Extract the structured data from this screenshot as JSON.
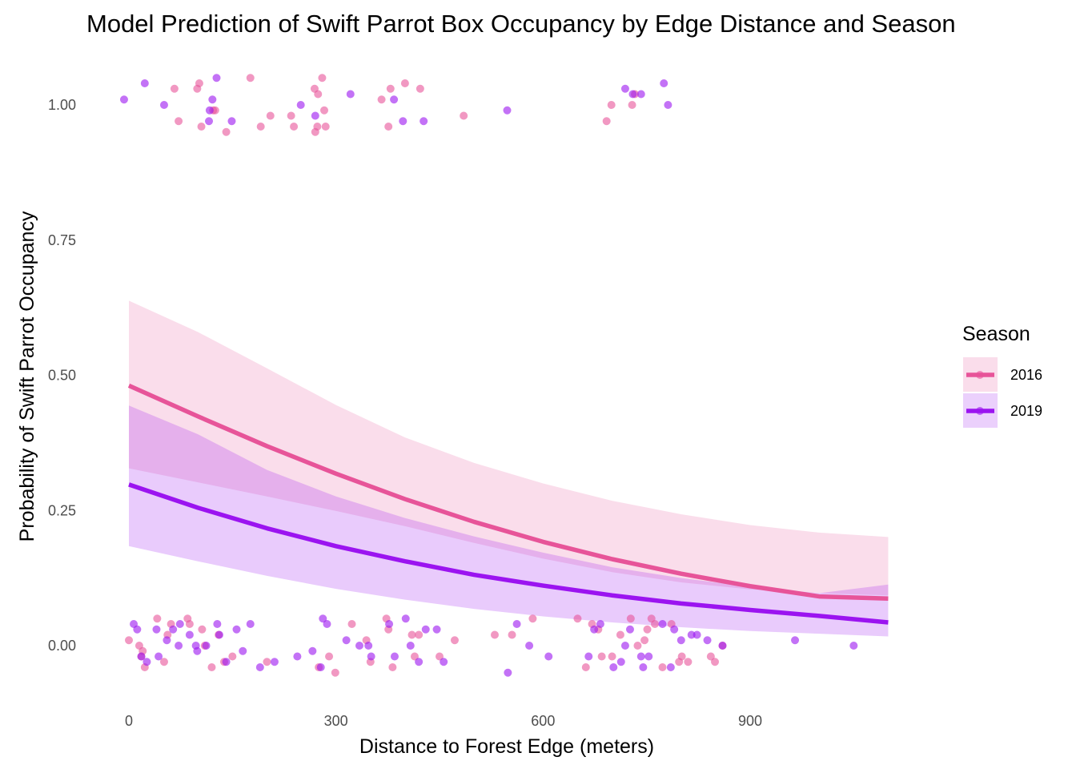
{
  "chart_data": {
    "type": "line",
    "title": "Model Prediction of Swift Parrot Box Occupancy by Edge Distance and Season",
    "xlabel": "Distance to Forest Edge (meters)",
    "ylabel": "Probability of Swift Parrot Occupancy",
    "xlim": [
      -20,
      1110
    ],
    "ylim": [
      -0.1,
      1.08
    ],
    "x_ticks": [
      0,
      300,
      600,
      900
    ],
    "x_tick_labels": [
      "0",
      "300",
      "600",
      "900"
    ],
    "y_ticks": [
      0.0,
      0.25,
      0.5,
      0.75,
      1.0
    ],
    "y_tick_labels": [
      "0.00",
      "0.25",
      "0.50",
      "0.75",
      "1.00"
    ],
    "grid": false,
    "legend": {
      "title": "Season",
      "position": "right"
    },
    "x": [
      0,
      100,
      200,
      300,
      400,
      500,
      600,
      700,
      800,
      900,
      1000,
      1100
    ],
    "series": [
      {
        "name": "2016",
        "color": "#e75499",
        "fit": [
          0.481,
          0.424,
          0.369,
          0.318,
          0.271,
          0.229,
          0.192,
          0.16,
          0.133,
          0.11,
          0.091,
          0.087
        ],
        "lower": [
          0.328,
          0.302,
          0.276,
          0.249,
          0.221,
          0.19,
          0.161,
          0.136,
          0.117,
          0.104,
          0.097,
          0.093
        ],
        "upper": [
          0.638,
          0.58,
          0.513,
          0.445,
          0.385,
          0.338,
          0.3,
          0.268,
          0.243,
          0.223,
          0.209,
          0.201
        ],
        "jittered_observations": {
          "occupied_1": [
            [
              66,
              1.03
            ],
            [
              72,
              0.97
            ],
            [
              99,
              1.03
            ],
            [
              102,
              1.04
            ],
            [
              105,
              0.96
            ],
            [
              122,
              0.99
            ],
            [
              125,
              0.99
            ],
            [
              141,
              0.95
            ],
            [
              176,
              1.05
            ],
            [
              191,
              0.96
            ],
            [
              205,
              0.98
            ],
            [
              235,
              0.98
            ],
            [
              239,
              0.96
            ],
            [
              269,
              1.03
            ],
            [
              270,
              0.95
            ],
            [
              273,
              0.96
            ],
            [
              274,
              1.02
            ],
            [
              280,
              1.05
            ],
            [
              283,
              0.99
            ],
            [
              285,
              0.96
            ],
            [
              366,
              1.01
            ],
            [
              376,
              0.96
            ],
            [
              379,
              1.03
            ],
            [
              400,
              1.04
            ],
            [
              422,
              1.03
            ],
            [
              485,
              0.98
            ],
            [
              692,
              0.97
            ],
            [
              699,
              1.0
            ],
            [
              729,
              1.0
            ],
            [
              733,
              1.02
            ]
          ],
          "occupied_0": [
            [
              0,
              0.01
            ],
            [
              15,
              0.0
            ],
            [
              18,
              -0.02
            ],
            [
              20,
              -0.01
            ],
            [
              23,
              -0.04
            ],
            [
              41,
              0.05
            ],
            [
              51,
              -0.03
            ],
            [
              56,
              0.02
            ],
            [
              61,
              0.04
            ],
            [
              85,
              0.05
            ],
            [
              88,
              0.04
            ],
            [
              106,
              0.03
            ],
            [
              110,
              0.0
            ],
            [
              120,
              -0.04
            ],
            [
              130,
              0.02
            ],
            [
              138,
              -0.03
            ],
            [
              150,
              -0.02
            ],
            [
              200,
              -0.03
            ],
            [
              275,
              -0.04
            ],
            [
              290,
              -0.02
            ],
            [
              299,
              -0.05
            ],
            [
              323,
              0.04
            ],
            [
              344,
              0.01
            ],
            [
              350,
              -0.03
            ],
            [
              373,
              0.05
            ],
            [
              376,
              0.03
            ],
            [
              382,
              -0.04
            ],
            [
              410,
              0.02
            ],
            [
              414,
              -0.02
            ],
            [
              420,
              0.02
            ],
            [
              450,
              -0.02
            ],
            [
              472,
              0.01
            ],
            [
              530,
              0.02
            ],
            [
              555,
              0.02
            ],
            [
              585,
              0.05
            ],
            [
              650,
              0.05
            ],
            [
              662,
              -0.04
            ],
            [
              671,
              0.04
            ],
            [
              680,
              0.03
            ],
            [
              685,
              -0.02
            ],
            [
              700,
              -0.02
            ],
            [
              712,
              0.02
            ],
            [
              727,
              0.05
            ],
            [
              737,
              0.0
            ],
            [
              747,
              0.01
            ],
            [
              751,
              0.03
            ],
            [
              757,
              0.05
            ],
            [
              762,
              0.04
            ],
            [
              773,
              -0.04
            ],
            [
              786,
              0.04
            ],
            [
              797,
              -0.03
            ],
            [
              801,
              -0.02
            ],
            [
              810,
              -0.03
            ],
            [
              843,
              -0.02
            ],
            [
              849,
              -0.03
            ],
            [
              860,
              0.0
            ]
          ]
        }
      },
      {
        "name": "2019",
        "color": "#9b14f0",
        "fit": [
          0.298,
          0.255,
          0.217,
          0.184,
          0.156,
          0.131,
          0.111,
          0.093,
          0.078,
          0.066,
          0.055,
          0.043
        ],
        "lower": [
          0.184,
          0.156,
          0.129,
          0.105,
          0.085,
          0.068,
          0.054,
          0.043,
          0.034,
          0.027,
          0.022,
          0.017
        ],
        "upper": [
          0.444,
          0.391,
          0.325,
          0.276,
          0.236,
          0.202,
          0.172,
          0.145,
          0.125,
          0.109,
          0.097,
          0.113
        ],
        "jittered_observations": {
          "occupied_1": [
            [
              -7,
              1.01
            ],
            [
              23,
              1.04
            ],
            [
              51,
              1.0
            ],
            [
              116,
              0.97
            ],
            [
              117,
              0.99
            ],
            [
              121,
              1.01
            ],
            [
              127,
              1.05
            ],
            [
              149,
              0.97
            ],
            [
              249,
              1.0
            ],
            [
              270,
              0.98
            ],
            [
              321,
              1.02
            ],
            [
              384,
              1.01
            ],
            [
              397,
              0.97
            ],
            [
              427,
              0.97
            ],
            [
              548,
              0.99
            ],
            [
              719,
              1.03
            ],
            [
              730,
              1.02
            ],
            [
              742,
              1.02
            ],
            [
              775,
              1.04
            ],
            [
              781,
              1.0
            ]
          ],
          "occupied_0": [
            [
              7,
              0.04
            ],
            [
              12,
              0.03
            ],
            [
              18,
              -0.02
            ],
            [
              26,
              -0.03
            ],
            [
              40,
              0.03
            ],
            [
              43,
              -0.02
            ],
            [
              55,
              0.01
            ],
            [
              64,
              0.03
            ],
            [
              72,
              0.0
            ],
            [
              74,
              0.04
            ],
            [
              88,
              0.02
            ],
            [
              97,
              0.0
            ],
            [
              99,
              -0.01
            ],
            [
              112,
              0.0
            ],
            [
              128,
              0.04
            ],
            [
              131,
              0.02
            ],
            [
              141,
              -0.03
            ],
            [
              156,
              0.03
            ],
            [
              165,
              -0.01
            ],
            [
              176,
              0.04
            ],
            [
              190,
              -0.04
            ],
            [
              211,
              -0.03
            ],
            [
              244,
              -0.02
            ],
            [
              266,
              -0.01
            ],
            [
              278,
              -0.04
            ],
            [
              281,
              0.05
            ],
            [
              287,
              0.04
            ],
            [
              315,
              0.01
            ],
            [
              334,
              0.0
            ],
            [
              347,
              0.0
            ],
            [
              351,
              -0.02
            ],
            [
              377,
              0.04
            ],
            [
              385,
              -0.02
            ],
            [
              401,
              0.05
            ],
            [
              408,
              0.0
            ],
            [
              420,
              -0.03
            ],
            [
              430,
              0.03
            ],
            [
              446,
              0.03
            ],
            [
              456,
              -0.03
            ],
            [
              549,
              -0.05
            ],
            [
              562,
              0.04
            ],
            [
              580,
              0.0
            ],
            [
              608,
              -0.02
            ],
            [
              666,
              -0.02
            ],
            [
              674,
              0.03
            ],
            [
              683,
              0.04
            ],
            [
              702,
              -0.04
            ],
            [
              713,
              -0.03
            ],
            [
              719,
              0.0
            ],
            [
              726,
              0.03
            ],
            [
              742,
              -0.02
            ],
            [
              745,
              -0.04
            ],
            [
              753,
              -0.02
            ],
            [
              773,
              0.04
            ],
            [
              785,
              -0.04
            ],
            [
              790,
              0.03
            ],
            [
              800,
              0.01
            ],
            [
              815,
              0.02
            ],
            [
              823,
              0.02
            ],
            [
              838,
              0.01
            ],
            [
              860,
              0.0
            ],
            [
              965,
              0.01
            ],
            [
              1050,
              0.0
            ]
          ]
        }
      }
    ]
  }
}
